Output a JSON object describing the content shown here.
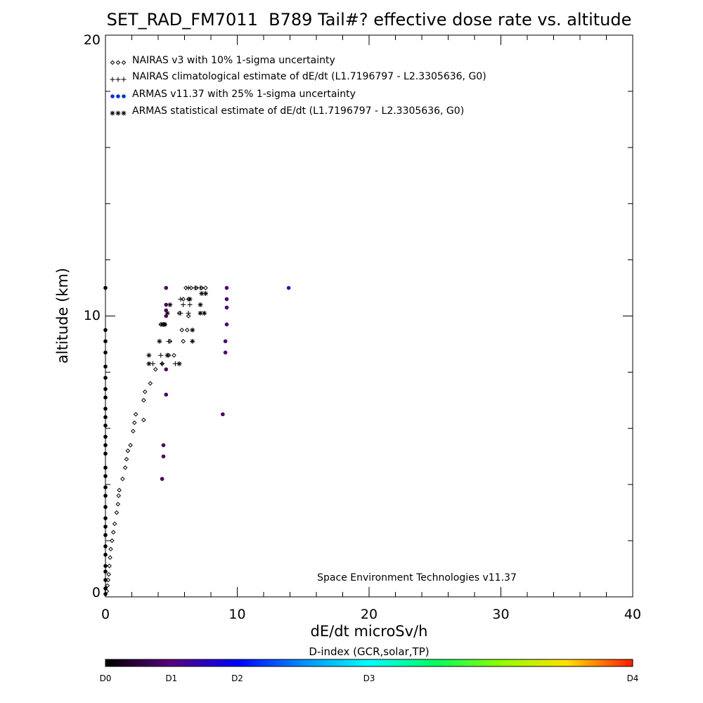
{
  "chart_data": {
    "type": "scatter",
    "title": "SET_RAD_FM7011  B789 Tail#? effective dose rate vs. altitude",
    "xlabel": "dE/dt microSv/h",
    "ylabel": "altitude (km)",
    "xlim": [
      0,
      40
    ],
    "ylim": [
      0,
      20
    ],
    "xticks": [
      "0",
      "10",
      "20",
      "30",
      "40"
    ],
    "yticks": [
      "0",
      "10",
      "20"
    ],
    "credit": "Space Environment Technologies v11.37",
    "legend_position": "top-left",
    "series": [
      {
        "name": "NAIRAS v3 with 10% 1-sigma uncertainty",
        "marker": "diamond",
        "color": "#000000",
        "points": [
          [
            0.1,
            0.2
          ],
          [
            0.15,
            0.4
          ],
          [
            0.2,
            0.6
          ],
          [
            0.25,
            0.8
          ],
          [
            0.3,
            1.1
          ],
          [
            0.35,
            1.4
          ],
          [
            0.4,
            1.7
          ],
          [
            0.5,
            2.0
          ],
          [
            0.6,
            2.3
          ],
          [
            0.7,
            2.6
          ],
          [
            0.85,
            3.0
          ],
          [
            0.95,
            3.3
          ],
          [
            1.0,
            3.6
          ],
          [
            1.05,
            3.8
          ],
          [
            1.3,
            4.2
          ],
          [
            1.5,
            4.6
          ],
          [
            1.6,
            4.9
          ],
          [
            1.7,
            5.2
          ],
          [
            1.9,
            5.4
          ],
          [
            2.1,
            5.9
          ],
          [
            2.2,
            6.2
          ],
          [
            2.3,
            6.5
          ],
          [
            2.9,
            6.3
          ],
          [
            2.9,
            7.0
          ],
          [
            3.0,
            7.3
          ],
          [
            3.4,
            7.6
          ],
          [
            3.8,
            8.1
          ],
          [
            4.3,
            8.3
          ],
          [
            4.8,
            8.6
          ],
          [
            5.2,
            8.6
          ],
          [
            4.9,
            9.1
          ],
          [
            5.9,
            9.1
          ],
          [
            4.2,
            9.7
          ],
          [
            4.5,
            9.7
          ],
          [
            5.8,
            9.5
          ],
          [
            6.2,
            9.5
          ],
          [
            6.3,
            10.0
          ],
          [
            5.6,
            10.1
          ],
          [
            5.9,
            10.6
          ],
          [
            6.3,
            10.6
          ],
          [
            6.1,
            11.0
          ],
          [
            6.5,
            11.0
          ],
          [
            6.9,
            11.0
          ],
          [
            7.3,
            11.0
          ],
          [
            7.6,
            11.0
          ]
        ]
      },
      {
        "name": "NAIRAS climatological estimate of dE/dt (L1.7196797 - L2.3305636, G0)",
        "marker": "plus",
        "color": "#000000",
        "points": [
          [
            3.6,
            8.3
          ],
          [
            4.2,
            8.6
          ],
          [
            4.8,
            9.1
          ],
          [
            4.4,
            9.7
          ],
          [
            5.7,
            10.6
          ],
          [
            5.7,
            10.1
          ],
          [
            6.3,
            10.1
          ],
          [
            5.9,
            10.4
          ],
          [
            6.4,
            10.4
          ],
          [
            6.3,
            11.0
          ],
          [
            6.8,
            11.0
          ],
          [
            7.2,
            11.0
          ],
          [
            4.3,
            8.3
          ],
          [
            5.3,
            8.3
          ]
        ]
      },
      {
        "name": "ARMAS v11.37 with 25% 1-sigma uncertainty",
        "marker": "dot",
        "color": "#0033cc",
        "points": [
          [
            4.3,
            4.2
          ],
          [
            4.4,
            5.0
          ],
          [
            4.4,
            5.4
          ],
          [
            4.6,
            7.2
          ],
          [
            4.6,
            8.1
          ],
          [
            4.6,
            10.0
          ],
          [
            4.6,
            10.2
          ],
          [
            4.6,
            10.4
          ],
          [
            4.6,
            11.0
          ],
          [
            8.9,
            6.5
          ],
          [
            9.1,
            8.7
          ],
          [
            9.1,
            9.1
          ],
          [
            9.2,
            9.7
          ],
          [
            9.2,
            10.3
          ],
          [
            9.2,
            10.6
          ],
          [
            9.2,
            11.0
          ],
          [
            13.9,
            11.0
          ]
        ]
      },
      {
        "name": "ARMAS statistical estimate of dE/dt (L1.7196797 - L2.3305636, G0)",
        "marker": "asterisk",
        "color": "#000000",
        "points": [
          [
            3.3,
            8.3
          ],
          [
            5.6,
            8.3
          ],
          [
            3.3,
            8.6
          ],
          [
            4.7,
            8.6
          ],
          [
            4.1,
            9.1
          ],
          [
            6.6,
            9.1
          ],
          [
            4.3,
            9.7
          ],
          [
            6.6,
            9.5
          ],
          [
            4.7,
            10.1
          ],
          [
            7.2,
            10.1
          ],
          [
            4.9,
            10.4
          ],
          [
            7.5,
            10.1
          ],
          [
            7.2,
            10.4
          ],
          [
            6.4,
            10.6
          ],
          [
            7.3,
            10.8
          ],
          [
            7.6,
            10.8
          ],
          [
            4.5,
            9.7
          ]
        ]
      },
      {
        "name": "",
        "marker": "dot",
        "color": "#000000",
        "points": [
          [
            0,
            0.1
          ],
          [
            0,
            0.3
          ],
          [
            0,
            0.6
          ],
          [
            0,
            0.9
          ],
          [
            0,
            1.1
          ],
          [
            0,
            1.5
          ],
          [
            0,
            1.8
          ],
          [
            0,
            2.2
          ],
          [
            0,
            2.5
          ],
          [
            0,
            2.8
          ],
          [
            0,
            3.2
          ],
          [
            0,
            3.6
          ],
          [
            0,
            3.9
          ],
          [
            0,
            4.3
          ],
          [
            0,
            4.6
          ],
          [
            0,
            5.1
          ],
          [
            0,
            5.4
          ],
          [
            0,
            5.7
          ],
          [
            0,
            6.1
          ],
          [
            0,
            6.4
          ],
          [
            0,
            6.7
          ],
          [
            0,
            7.1
          ],
          [
            0,
            7.4
          ],
          [
            0,
            7.8
          ],
          [
            0,
            8.2
          ],
          [
            0,
            8.7
          ],
          [
            0,
            9.1
          ],
          [
            0,
            9.5
          ],
          [
            0,
            11.0
          ]
        ]
      }
    ],
    "colorbar": {
      "title": "D-index (GCR,solar,TP)",
      "labels": [
        "D0",
        "D1",
        "D2",
        "D3",
        "D4"
      ],
      "label_fractions": [
        0,
        0.125,
        0.25,
        0.5,
        1.0
      ]
    }
  }
}
